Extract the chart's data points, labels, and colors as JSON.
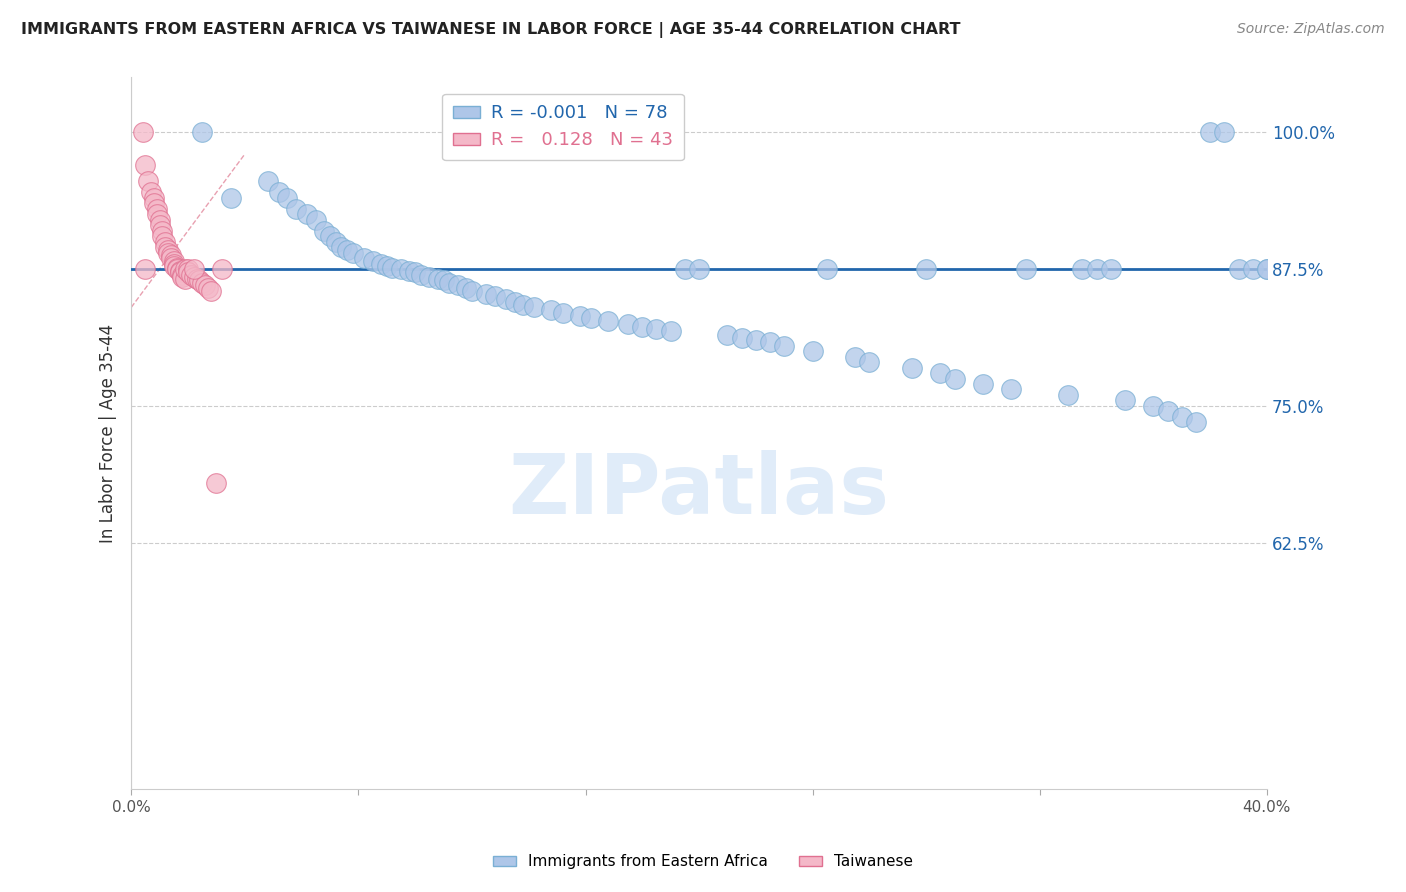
{
  "title": "IMMIGRANTS FROM EASTERN AFRICA VS TAIWANESE IN LABOR FORCE | AGE 35-44 CORRELATION CHART",
  "source": "Source: ZipAtlas.com",
  "ylabel": "In Labor Force | Age 35-44",
  "xlim": [
    0.0,
    0.4
  ],
  "ylim": [
    0.4,
    1.05
  ],
  "yticks": [
    0.625,
    0.75,
    0.875,
    1.0
  ],
  "ytick_labels": [
    "62.5%",
    "75.0%",
    "87.5%",
    "100.0%"
  ],
  "xticks": [
    0.0,
    0.08,
    0.16,
    0.24,
    0.32,
    0.4
  ],
  "xtick_labels": [
    "0.0%",
    "",
    "",
    "",
    "",
    "40.0%"
  ],
  "blue_r": "-0.001",
  "blue_n": "78",
  "pink_r": "0.128",
  "pink_n": "43",
  "hline_y": 0.875,
  "hline_color": "#2166ac",
  "blue_color": "#aec6e8",
  "blue_edge": "#7aafd4",
  "pink_color": "#f4b8c8",
  "pink_edge": "#e07090",
  "watermark": "ZIPatlas",
  "blue_scatter_x": [
    0.025,
    0.035,
    0.048,
    0.052,
    0.055,
    0.058,
    0.062,
    0.065,
    0.068,
    0.07,
    0.072,
    0.074,
    0.076,
    0.078,
    0.082,
    0.085,
    0.088,
    0.09,
    0.092,
    0.095,
    0.098,
    0.1,
    0.102,
    0.105,
    0.108,
    0.11,
    0.112,
    0.115,
    0.118,
    0.12,
    0.125,
    0.128,
    0.132,
    0.135,
    0.138,
    0.142,
    0.148,
    0.152,
    0.158,
    0.162,
    0.168,
    0.175,
    0.18,
    0.185,
    0.19,
    0.195,
    0.2,
    0.21,
    0.215,
    0.22,
    0.225,
    0.23,
    0.24,
    0.245,
    0.255,
    0.26,
    0.275,
    0.28,
    0.285,
    0.29,
    0.3,
    0.31,
    0.315,
    0.33,
    0.35,
    0.36,
    0.365,
    0.37,
    0.375,
    0.38,
    0.385,
    0.39,
    0.395,
    0.4,
    0.4,
    0.335,
    0.34,
    0.345
  ],
  "blue_scatter_y": [
    1.0,
    0.94,
    0.955,
    0.945,
    0.94,
    0.93,
    0.925,
    0.92,
    0.91,
    0.905,
    0.9,
    0.895,
    0.892,
    0.89,
    0.885,
    0.882,
    0.88,
    0.878,
    0.876,
    0.875,
    0.873,
    0.872,
    0.87,
    0.868,
    0.866,
    0.865,
    0.862,
    0.86,
    0.858,
    0.855,
    0.852,
    0.85,
    0.848,
    0.845,
    0.842,
    0.84,
    0.838,
    0.835,
    0.832,
    0.83,
    0.828,
    0.825,
    0.822,
    0.82,
    0.818,
    0.875,
    0.875,
    0.815,
    0.812,
    0.81,
    0.808,
    0.805,
    0.8,
    0.875,
    0.795,
    0.79,
    0.785,
    0.875,
    0.78,
    0.775,
    0.77,
    0.765,
    0.875,
    0.76,
    0.755,
    0.75,
    0.745,
    0.74,
    0.735,
    1.0,
    1.0,
    0.875,
    0.875,
    0.875,
    0.875,
    0.875,
    0.875,
    0.875
  ],
  "pink_scatter_x": [
    0.004,
    0.005,
    0.006,
    0.007,
    0.008,
    0.008,
    0.009,
    0.009,
    0.01,
    0.01,
    0.011,
    0.011,
    0.012,
    0.012,
    0.013,
    0.013,
    0.014,
    0.014,
    0.015,
    0.015,
    0.015,
    0.016,
    0.016,
    0.017,
    0.017,
    0.018,
    0.018,
    0.019,
    0.019,
    0.02,
    0.02,
    0.021,
    0.022,
    0.023,
    0.024,
    0.025,
    0.026,
    0.027,
    0.028,
    0.03,
    0.032,
    0.005,
    0.022
  ],
  "pink_scatter_y": [
    1.0,
    0.97,
    0.955,
    0.945,
    0.94,
    0.935,
    0.93,
    0.925,
    0.92,
    0.915,
    0.91,
    0.905,
    0.9,
    0.895,
    0.892,
    0.89,
    0.888,
    0.885,
    0.882,
    0.88,
    0.878,
    0.876,
    0.875,
    0.873,
    0.872,
    0.87,
    0.868,
    0.866,
    0.875,
    0.875,
    0.872,
    0.87,
    0.868,
    0.866,
    0.865,
    0.862,
    0.86,
    0.858,
    0.855,
    0.68,
    0.875,
    0.875,
    0.875
  ]
}
